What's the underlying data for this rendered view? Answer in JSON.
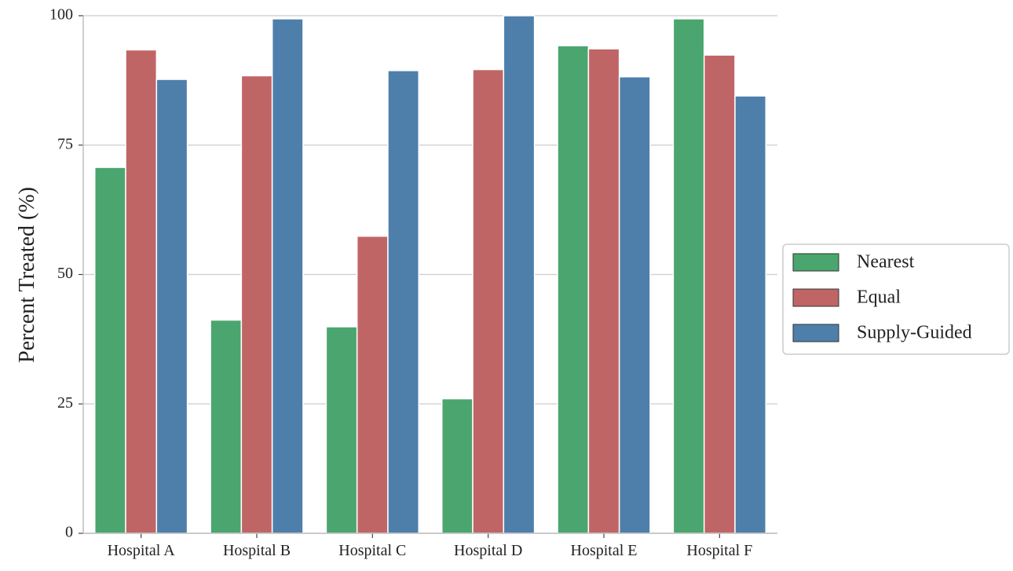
{
  "chart_data": {
    "type": "bar",
    "title": "",
    "xlabel": "",
    "ylabel": "Percent Treated (%)",
    "ylim": [
      0,
      100
    ],
    "yticks": [
      0,
      25,
      50,
      75,
      100
    ],
    "grid": "horizontal",
    "legend_position": "right",
    "categories": [
      "Hospital A",
      "Hospital B",
      "Hospital C",
      "Hospital D",
      "Hospital E",
      "Hospital F"
    ],
    "series": [
      {
        "name": "Nearest",
        "color": "#4aa66e",
        "values": [
          70.7,
          41.2,
          39.9,
          26.0,
          94.2,
          99.4
        ]
      },
      {
        "name": "Equal",
        "color": "#c06566",
        "values": [
          93.4,
          88.4,
          57.4,
          89.6,
          93.6,
          92.4
        ]
      },
      {
        "name": "Supply-Guided",
        "color": "#4e7fab",
        "values": [
          87.7,
          99.4,
          89.4,
          100.0,
          88.2,
          84.5
        ]
      }
    ]
  }
}
